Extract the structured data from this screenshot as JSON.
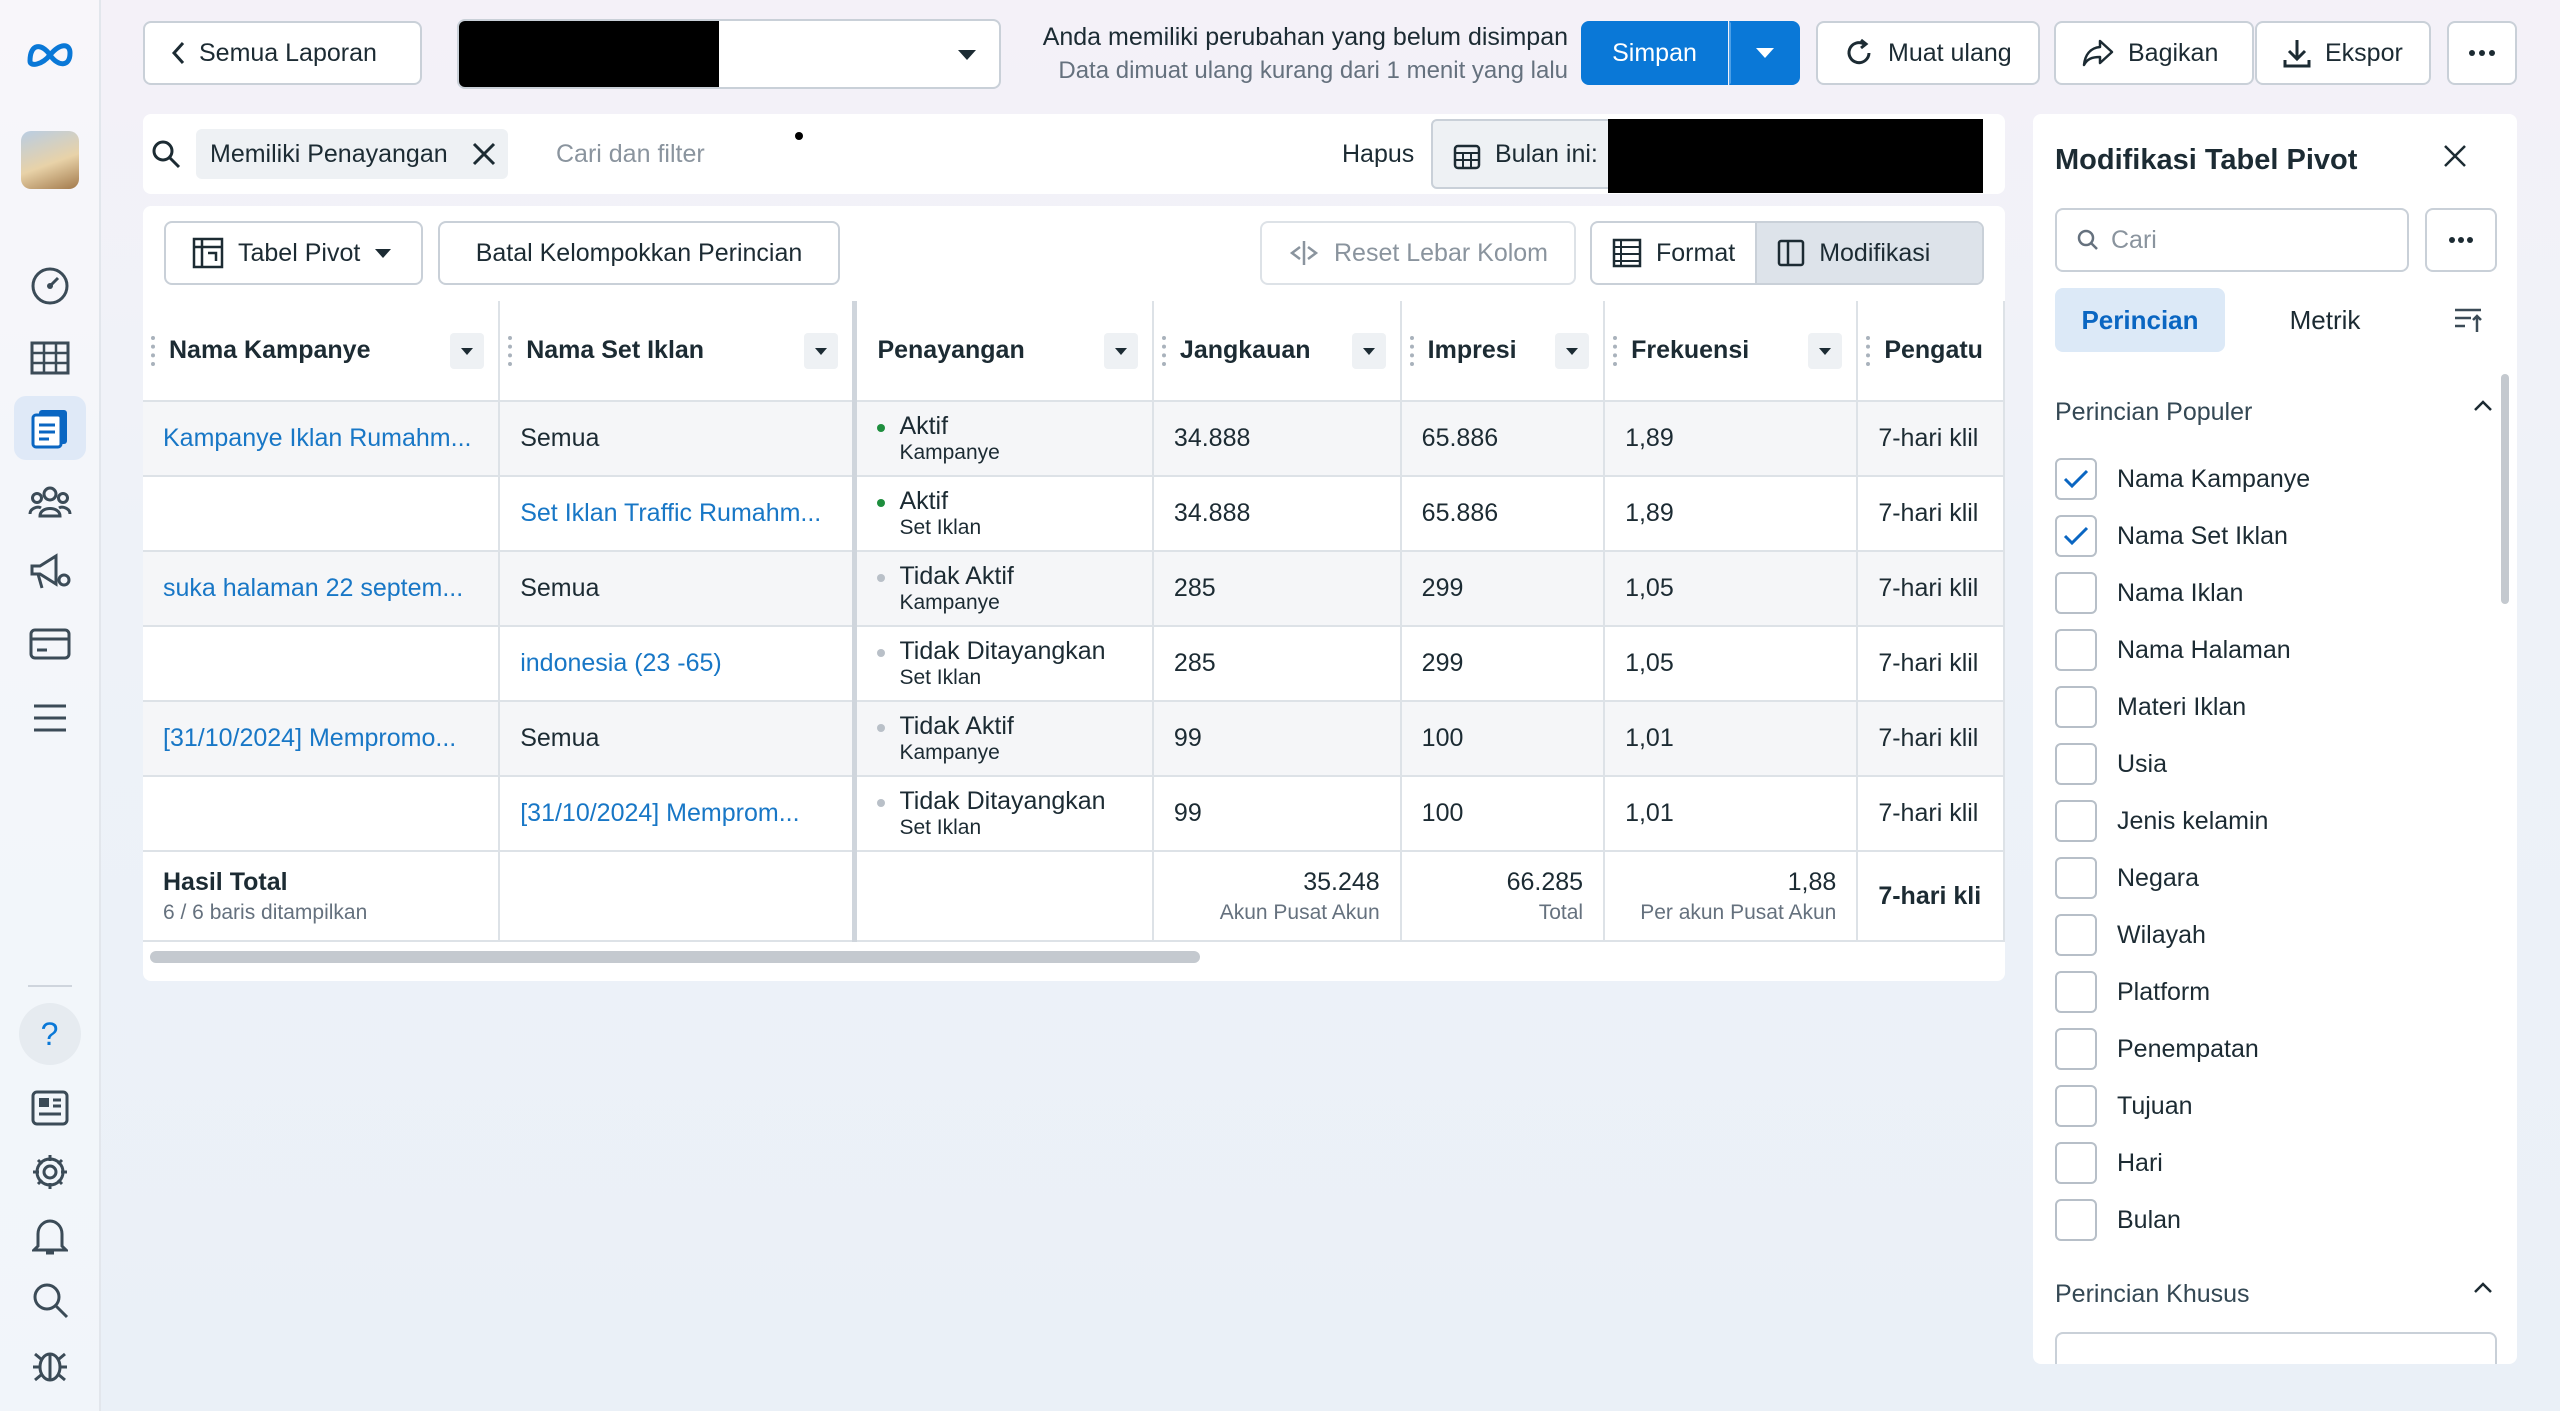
{
  "header": {
    "back_label": "Semua Laporan",
    "notice_line1": "Anda memiliki perubahan yang belum disimpan",
    "notice_line2": "Data dimuat ulang kurang dari 1 menit yang lalu",
    "save_label": "Simpan",
    "reload_label": "Muat ulang",
    "share_label": "Bagikan",
    "export_label": "Ekspor"
  },
  "filter": {
    "chip_label": "Memiliki Penayangan",
    "placeholder": "Cari dan filter",
    "clear_label": "Hapus",
    "date_label": "Bulan ini:"
  },
  "toolbar": {
    "view_label": "Tabel Pivot",
    "ungroup_label": "Batal Kelompokkan Perincian",
    "reset_label": "Reset Lebar Kolom",
    "format_label": "Format",
    "customize_label": "Modifikasi"
  },
  "table": {
    "columns": [
      "Nama Kampanye",
      "Nama Set Iklan",
      "Penayangan",
      "Jangkauan",
      "Impresi",
      "Frekuensi",
      "Pengatu"
    ],
    "rows": [
      {
        "campaign": "Kampanye Iklan Rumahm...",
        "adset": "Semua",
        "status": "Aktif",
        "level": "Kampanye",
        "reach": "34.888",
        "impressions": "65.886",
        "frequency": "1,89",
        "setting": "7-hari klil"
      },
      {
        "campaign": "",
        "adset": "Set Iklan Traffic Rumahm...",
        "status": "Aktif",
        "level": "Set Iklan",
        "reach": "34.888",
        "impressions": "65.886",
        "frequency": "1,89",
        "setting": "7-hari klil"
      },
      {
        "campaign": "suka halaman 22 septem...",
        "adset": "Semua",
        "status": "Tidak Aktif",
        "level": "Kampanye",
        "reach": "285",
        "impressions": "299",
        "frequency": "1,05",
        "setting": "7-hari klil"
      },
      {
        "campaign": "",
        "adset": "indonesia (23 -65)",
        "status": "Tidak Ditayangkan",
        "level": "Set Iklan",
        "reach": "285",
        "impressions": "299",
        "frequency": "1,05",
        "setting": "7-hari klil"
      },
      {
        "campaign": "[31/10/2024] Mempromo...",
        "adset": "Semua",
        "status": "Tidak Aktif",
        "level": "Kampanye",
        "reach": "99",
        "impressions": "100",
        "frequency": "1,01",
        "setting": "7-hari klil"
      },
      {
        "campaign": "",
        "adset": "[31/10/2024] Memprom...",
        "status": "Tidak Ditayangkan",
        "level": "Set Iklan",
        "reach": "99",
        "impressions": "100",
        "frequency": "1,01",
        "setting": "7-hari klil"
      }
    ],
    "total": {
      "label": "Hasil Total",
      "sub": "6 / 6 baris ditampilkan",
      "reach": "35.248",
      "reach_sub": "Akun Pusat Akun",
      "impressions": "66.285",
      "impressions_sub": "Total",
      "frequency": "1,88",
      "frequency_sub": "Per akun Pusat Akun",
      "setting": "7-hari kli"
    }
  },
  "side_panel": {
    "title": "Modifikasi Tabel Pivot",
    "search_placeholder": "Cari",
    "tab_breakdown": "Perincian",
    "tab_metrics": "Metrik",
    "popular_title": "Perincian Populer",
    "items": [
      {
        "label": "Nama Kampanye",
        "checked": true
      },
      {
        "label": "Nama Set Iklan",
        "checked": true
      },
      {
        "label": "Nama Iklan",
        "checked": false
      },
      {
        "label": "Nama Halaman",
        "checked": false
      },
      {
        "label": "Materi Iklan",
        "checked": false
      },
      {
        "label": "Usia",
        "checked": false
      },
      {
        "label": "Jenis kelamin",
        "checked": false
      },
      {
        "label": "Negara",
        "checked": false
      },
      {
        "label": "Wilayah",
        "checked": false
      },
      {
        "label": "Platform",
        "checked": false
      },
      {
        "label": "Penempatan",
        "checked": false
      },
      {
        "label": "Tujuan",
        "checked": false
      },
      {
        "label": "Hari",
        "checked": false
      },
      {
        "label": "Bulan",
        "checked": false
      }
    ],
    "custom_title": "Perincian Khusus"
  },
  "colors": {
    "accent": "#0a78d7",
    "link": "#1877c6",
    "active_dot": "#1e8e3e",
    "inactive_dot": "#b9c0c8"
  }
}
